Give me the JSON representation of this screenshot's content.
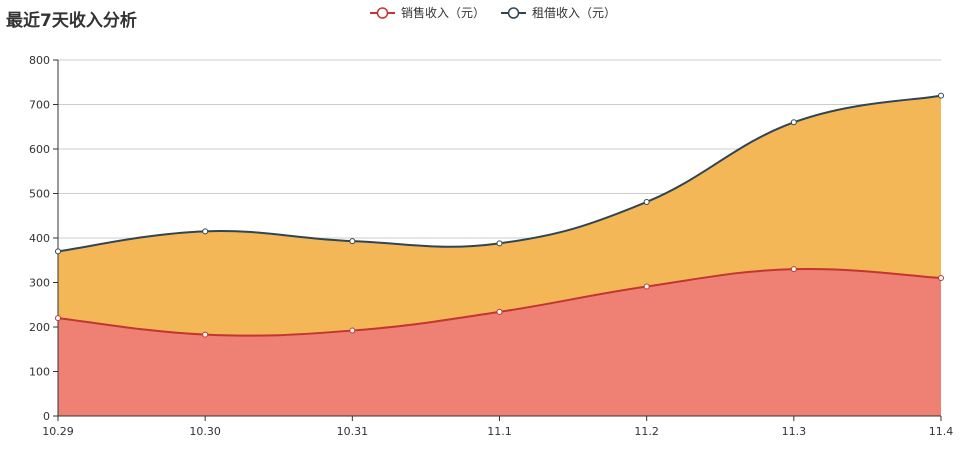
{
  "title": "最近7天收入分析",
  "chart_data": {
    "type": "area",
    "title": "最近7天收入分析",
    "stacked": true,
    "smooth": true,
    "categories": [
      "10.29",
      "10.30",
      "10.31",
      "11.1",
      "11.2",
      "11.3",
      "11.4"
    ],
    "ylim": [
      0,
      800
    ],
    "yticks": [
      0,
      100,
      200,
      300,
      400,
      500,
      600,
      700,
      800
    ],
    "grid": true,
    "legend_position": "top-center",
    "series": [
      {
        "name": "销售收入（元）",
        "values": [
          220,
          183,
          192,
          234,
          291,
          330,
          310
        ],
        "line_color": "#c23531",
        "fill_color": "#ee8074"
      },
      {
        "name": "租借收入（元）",
        "values": [
          150,
          232,
          201,
          154,
          190,
          330,
          410
        ],
        "line_color": "#2f4554",
        "fill_color": "#f4b757"
      }
    ]
  }
}
